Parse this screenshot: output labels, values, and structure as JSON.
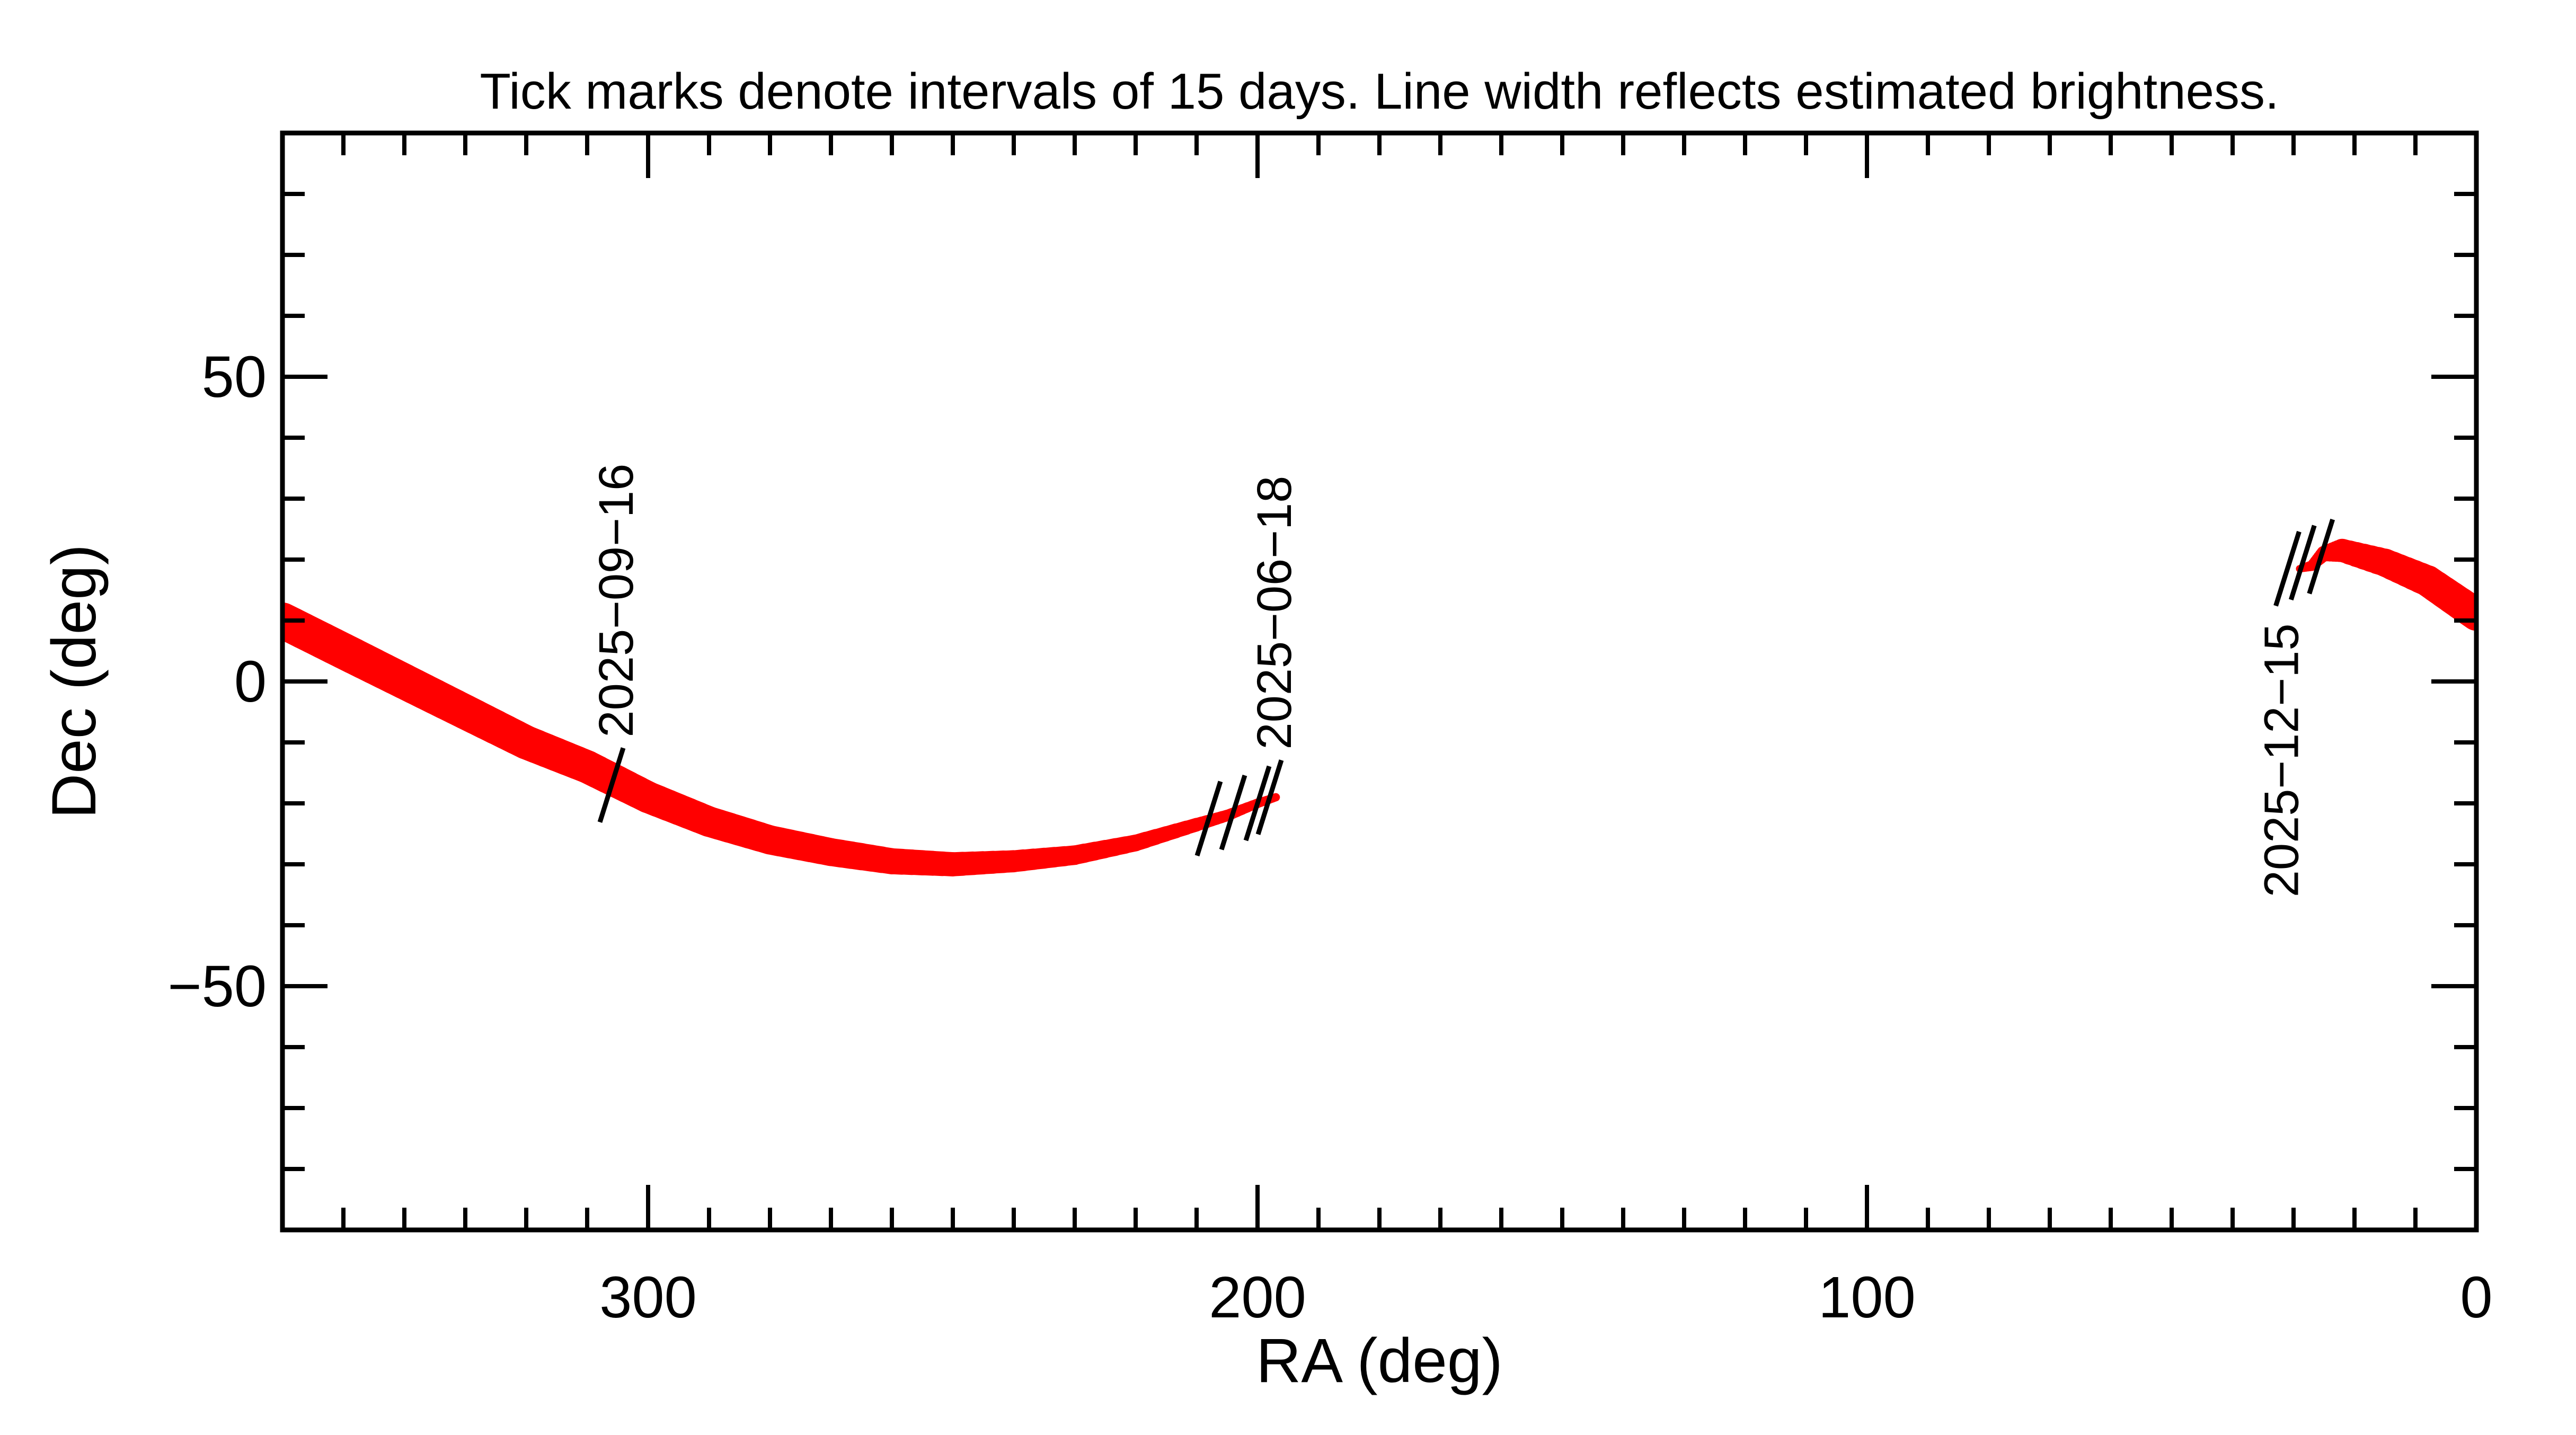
{
  "chart_data": {
    "type": "line",
    "title": "Tick marks denote intervals of 15 days.  Line width reflects estimated brightness.",
    "xlabel": "RA (deg)",
    "ylabel": "Dec (deg)",
    "xlim": [
      360,
      0
    ],
    "ylim": [
      -90,
      90
    ],
    "x_reversed": true,
    "xticks": [
      300,
      200,
      100,
      0
    ],
    "xtick_labels": [
      "300",
      "200",
      "100",
      "0"
    ],
    "yticks": [
      -50,
      0,
      50
    ],
    "ytick_labels": [
      "−50",
      "0",
      "50"
    ],
    "grid": false,
    "line_color": "#ff0000",
    "tick_color": "#000000",
    "series": [
      {
        "ra": [
          360,
          350,
          340,
          330,
          320,
          310,
          300,
          290,
          280,
          270,
          260,
          250,
          240,
          230,
          220,
          210,
          205,
          200,
          197
        ],
        "dec": [
          10,
          5,
          0,
          -5,
          -10,
          -14,
          -19,
          -23,
          -26,
          -28,
          -29.5,
          -30,
          -29.5,
          -28.5,
          -26.5,
          -23.5,
          -22,
          -20,
          -19
        ],
        "relative_brightness": [
          1.0,
          1.0,
          0.98,
          0.96,
          0.93,
          0.9,
          0.86,
          0.82,
          0.78,
          0.74,
          0.68,
          0.62,
          0.55,
          0.47,
          0.38,
          0.28,
          0.22,
          0.16,
          0.12
        ]
      },
      {
        "ra": [
          29,
          27,
          25,
          22,
          15,
          8,
          0
        ],
        "dec": [
          18.5,
          19,
          21,
          21.5,
          19.5,
          16.5,
          11
        ],
        "relative_brightness": [
          0.1,
          0.2,
          0.35,
          0.6,
          0.75,
          0.85,
          0.9
        ]
      }
    ],
    "date_ticks": [
      {
        "ra": 306,
        "dec": -17,
        "label": "2025−09−16"
      },
      {
        "ra": 208,
        "dec": -22.5,
        "label": ""
      },
      {
        "ra": 204,
        "dec": -21.5,
        "label": ""
      },
      {
        "ra": 200,
        "dec": -20,
        "label": ""
      },
      {
        "ra": 198,
        "dec": -19,
        "label": "2025−06−18"
      },
      {
        "ra": 31,
        "dec": 18.5,
        "label": "2025−12−15"
      },
      {
        "ra": 28.5,
        "dec": 19.5,
        "label": ""
      },
      {
        "ra": 25.5,
        "dec": 20.5,
        "label": ""
      }
    ]
  }
}
